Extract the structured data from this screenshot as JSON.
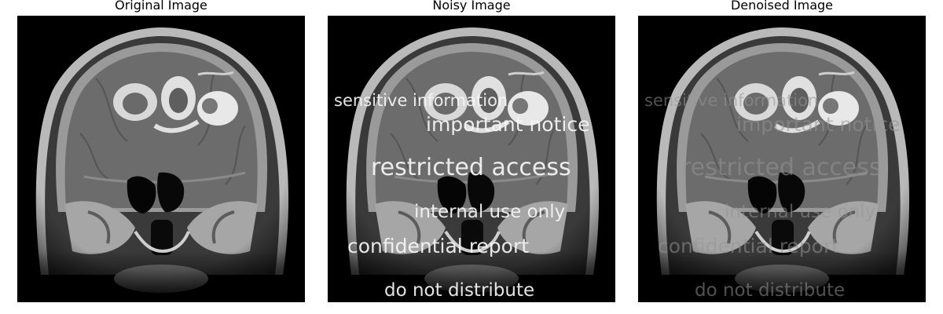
{
  "panels": [
    {
      "title": "Original Image"
    },
    {
      "title": "Noisy Image"
    },
    {
      "title": "Denoised Image"
    }
  ],
  "overlay_text": [
    "sensitive information",
    "important notice",
    "restricted access",
    "internal use only",
    "confidential report",
    "do not distribute"
  ],
  "colors": {
    "background": "#000000",
    "tissue": "#6a6a6a",
    "bright": "#e6e6e6"
  }
}
